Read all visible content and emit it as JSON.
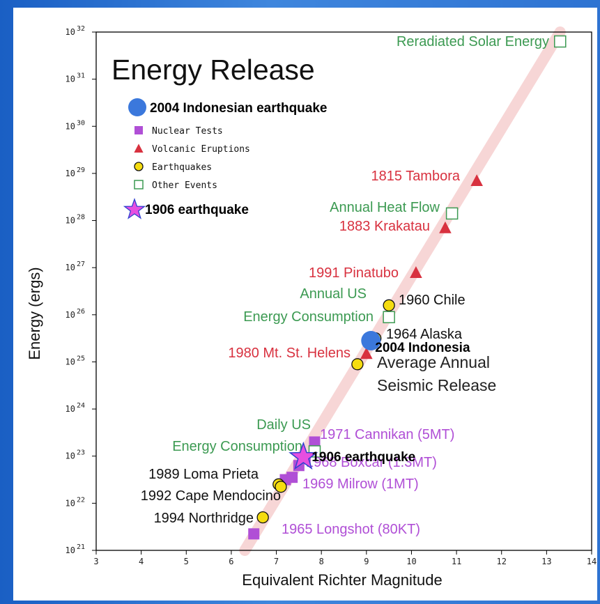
{
  "colors": {
    "background": "#2a6fd0",
    "volcanic": "#d8313f",
    "nuclear": "#b04fd6",
    "earthquake_fill": "#f5dc10",
    "other_events": "#3c9a52",
    "line": "#f6cfcf",
    "annotation_dot": "#3b78dc",
    "annotation_star": "#e64fe0"
  },
  "chart_data": {
    "type": "scatter",
    "title": "Energy Release",
    "xlabel": "Equivalent Richter Magnitude",
    "ylabel": "Energy (ergs)",
    "xlim": [
      3,
      14
    ],
    "ylim": [
      21,
      32
    ],
    "y_scale": "log10",
    "x_ticks": [
      "3",
      "4",
      "5",
      "6",
      "7",
      "8",
      "9",
      "10",
      "11",
      "12",
      "13",
      "14"
    ],
    "y_tick_base": "10",
    "y_tick_exponents": [
      "21",
      "22",
      "23",
      "24",
      "25",
      "26",
      "27",
      "28",
      "29",
      "30",
      "31",
      "32"
    ],
    "grid": false,
    "legend_position": "top-left",
    "legend": [
      {
        "label": "Nuclear Tests",
        "marker": "square-filled"
      },
      {
        "label": "Volcanic Eruptions",
        "marker": "triangle"
      },
      {
        "label": "Earthquakes",
        "marker": "circle"
      },
      {
        "label": "Other Events",
        "marker": "square-open"
      }
    ],
    "trend_line": {
      "x": [
        6.3,
        13.3
      ],
      "log_energy": [
        21.0,
        32.0
      ]
    },
    "series": [
      {
        "name": "Nuclear Tests",
        "points": [
          {
            "x": 6.5,
            "log_energy": 21.35,
            "label": "1965 Longshot (80KT)"
          },
          {
            "x": 7.2,
            "log_energy": 22.5,
            "label": ""
          },
          {
            "x": 7.35,
            "log_energy": 22.55,
            "label": "1969 Milrow (1MT)"
          },
          {
            "x": 7.5,
            "log_energy": 22.8,
            "label": "1968 Boxcar (1.3MT)"
          },
          {
            "x": 7.85,
            "log_energy": 23.3,
            "label": "1971 Cannikan (5MT)"
          }
        ]
      },
      {
        "name": "Volcanic Eruptions",
        "points": [
          {
            "x": 11.45,
            "log_energy": 28.85,
            "label": "1815 Tambora"
          },
          {
            "x": 10.75,
            "log_energy": 27.85,
            "label": "1883 Krakatau"
          },
          {
            "x": 10.1,
            "log_energy": 26.9,
            "label": "1991 Pinatubo"
          },
          {
            "x": 9.0,
            "log_energy": 25.18,
            "label": "1980 Mt. St. Helens"
          }
        ]
      },
      {
        "name": "Earthquakes",
        "points": [
          {
            "x": 9.5,
            "log_energy": 26.2,
            "label": "1960 Chile"
          },
          {
            "x": 9.2,
            "log_energy": 25.5,
            "label": "1964 Alaska"
          },
          {
            "x": 8.8,
            "log_energy": 24.95,
            "label": ""
          },
          {
            "x": 7.05,
            "log_energy": 22.4,
            "label": "1989 Loma Prieta"
          },
          {
            "x": 7.1,
            "log_energy": 22.35,
            "label": "1992 Cape Mendocino"
          },
          {
            "x": 6.7,
            "log_energy": 21.7,
            "label": "1994 Northridge"
          }
        ]
      },
      {
        "name": "Other Events",
        "points": [
          {
            "x": 13.3,
            "log_energy": 31.8,
            "label": "Reradiated Solar Energy"
          },
          {
            "x": 10.9,
            "log_energy": 28.15,
            "label": "Annual Heat Flow"
          },
          {
            "x": 9.5,
            "log_energy": 25.95,
            "label": ""
          },
          {
            "x": 7.85,
            "log_energy": 23.1,
            "label": ""
          }
        ]
      }
    ],
    "annotations": [
      {
        "text": "Annual US",
        "kind": "other"
      },
      {
        "text": "Energy Consumption",
        "kind": "other"
      },
      {
        "text": "Daily US",
        "kind": "other"
      },
      {
        "text": "Energy Consumption",
        "kind": "other"
      },
      {
        "text": "Average Annual",
        "kind": "plain"
      },
      {
        "text": "Seismic Release",
        "kind": "plain"
      }
    ],
    "highlights": [
      {
        "marker": "dot",
        "x": 9.1,
        "log_energy": 25.45,
        "label": "2004 Indonesia"
      },
      {
        "marker": "star",
        "x": 7.6,
        "log_energy": 22.98,
        "label": "1906 earthquake"
      }
    ],
    "callout_legend": [
      {
        "marker": "dot",
        "label": "2004 Indonesian earthquake"
      },
      {
        "marker": "star",
        "label": "1906 earthquake"
      }
    ]
  }
}
